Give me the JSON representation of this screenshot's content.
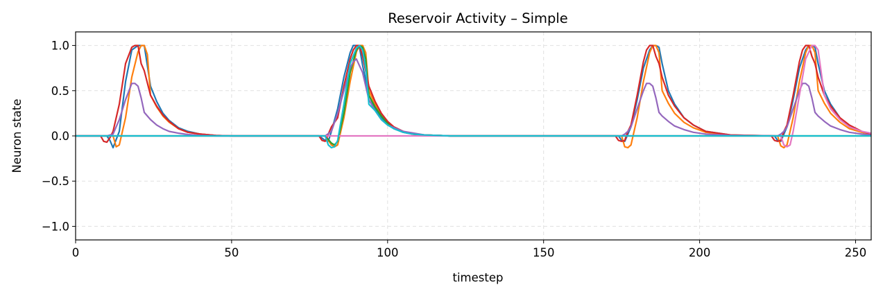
{
  "chart_data": {
    "type": "line",
    "title": "Reservoir Activity – Simple",
    "xlabel": "timestep",
    "ylabel": "Neuron state",
    "xlim": [
      0,
      255
    ],
    "ylim": [
      -1.15,
      1.15
    ],
    "xticks": [
      0,
      50,
      100,
      150,
      200,
      250
    ],
    "xtick_labels": [
      "0",
      "50",
      "100",
      "150",
      "200",
      "250"
    ],
    "yticks": [
      -1.0,
      -0.5,
      0.0,
      0.5,
      1.0
    ],
    "ytick_labels": [
      "−1.0",
      "−0.5",
      "0.0",
      "0.5",
      "1.0"
    ],
    "grid": true,
    "legend": "none",
    "series": [
      {
        "color": "#1f77b4",
        "x": [
          0,
          10,
          11,
          12,
          14,
          16,
          18,
          20,
          22,
          24,
          26,
          28,
          30,
          33,
          36,
          40,
          45,
          50,
          60,
          78,
          80,
          81,
          82,
          84,
          86,
          88,
          89,
          90,
          91,
          92,
          94,
          96,
          98,
          100,
          102,
          105,
          108,
          112,
          120,
          150,
          174,
          175,
          176,
          177,
          178,
          180,
          182,
          184,
          185,
          186,
          187,
          188,
          190,
          192,
          195,
          198,
          202,
          210,
          224,
          225,
          226,
          227,
          228,
          230,
          232,
          234,
          235,
          236,
          237,
          238,
          240,
          242,
          245,
          248,
          252,
          255
        ],
        "y": [
          0,
          0,
          -0.05,
          -0.13,
          0.05,
          0.6,
          0.95,
          1,
          1,
          0.55,
          0.38,
          0.25,
          0.17,
          0.09,
          0.05,
          0.02,
          0.005,
          0,
          0,
          0,
          -0.05,
          -0.06,
          0.05,
          0.3,
          0.65,
          0.92,
          1,
          1,
          0.98,
          0.78,
          0.45,
          0.3,
          0.2,
          0.13,
          0.08,
          0.04,
          0.02,
          0.01,
          0,
          0,
          0,
          -0.05,
          -0.06,
          0.02,
          0.1,
          0.4,
          0.75,
          0.95,
          1,
          1,
          0.98,
          0.8,
          0.5,
          0.35,
          0.2,
          0.12,
          0.05,
          0.01,
          0,
          -0.05,
          -0.06,
          0.02,
          0.1,
          0.4,
          0.75,
          0.95,
          1,
          1,
          0.98,
          0.8,
          0.5,
          0.35,
          0.2,
          0.1,
          0.04,
          0.02
        ]
      },
      {
        "color": "#ff7f0e",
        "x": [
          0,
          10,
          12,
          13,
          14,
          16,
          18,
          20,
          21,
          22,
          23,
          24,
          26,
          28,
          30,
          33,
          36,
          40,
          45,
          50,
          60,
          80,
          82,
          83,
          84,
          86,
          88,
          90,
          91,
          92,
          93,
          94,
          96,
          98,
          100,
          102,
          105,
          108,
          112,
          120,
          150,
          175,
          176,
          177,
          178,
          180,
          182,
          184,
          185,
          186,
          187,
          188,
          190,
          192,
          195,
          198,
          202,
          210,
          225,
          226,
          227,
          228,
          230,
          232,
          234,
          235,
          236,
          237,
          238,
          240,
          242,
          245,
          248,
          252,
          255
        ],
        "y": [
          0,
          0,
          0,
          -0.12,
          -0.1,
          0.2,
          0.65,
          0.93,
          1,
          1,
          0.9,
          0.45,
          0.32,
          0.22,
          0.15,
          0.08,
          0.04,
          0.02,
          0.005,
          0,
          0,
          0,
          -0.1,
          -0.12,
          -0.1,
          0.2,
          0.6,
          0.93,
          1,
          1,
          0.92,
          0.5,
          0.35,
          0.24,
          0.15,
          0.1,
          0.05,
          0.02,
          0.01,
          0,
          0,
          0,
          -0.12,
          -0.13,
          -0.1,
          0.2,
          0.6,
          0.92,
          1,
          1,
          0.92,
          0.5,
          0.36,
          0.25,
          0.15,
          0.09,
          0.04,
          0.01,
          0,
          -0.11,
          -0.13,
          -0.1,
          0.2,
          0.6,
          0.92,
          1,
          1,
          0.92,
          0.5,
          0.36,
          0.25,
          0.15,
          0.08,
          0.04,
          0.02
        ]
      },
      {
        "color": "#2ca02c",
        "x": [
          0,
          80,
          82,
          83,
          84,
          86,
          88,
          90,
          91,
          92,
          93,
          94,
          96,
          98,
          100,
          102,
          105,
          108,
          112,
          120,
          150,
          255
        ],
        "y": [
          0,
          0,
          -0.08,
          -0.1,
          -0.06,
          0.25,
          0.7,
          0.95,
          1,
          0.98,
          0.85,
          0.45,
          0.32,
          0.22,
          0.14,
          0.09,
          0.05,
          0.02,
          0.01,
          0,
          0,
          0
        ]
      },
      {
        "color": "#d62728",
        "x": [
          0,
          8,
          9,
          10,
          11,
          12,
          14,
          16,
          18,
          19,
          20,
          21,
          22,
          24,
          26,
          28,
          30,
          33,
          36,
          40,
          45,
          50,
          60,
          78,
          79,
          80,
          81,
          82,
          84,
          86,
          88,
          89,
          90,
          91,
          92,
          94,
          96,
          98,
          100,
          102,
          105,
          108,
          112,
          120,
          150,
          173,
          174,
          175,
          176,
          177,
          178,
          180,
          182,
          183,
          184,
          185,
          186,
          187,
          188,
          190,
          192,
          195,
          198,
          202,
          210,
          223,
          224,
          225,
          226,
          227,
          228,
          230,
          232,
          233,
          234,
          235,
          236,
          237,
          238,
          240,
          242,
          245,
          248,
          252,
          255
        ],
        "y": [
          0,
          0,
          -0.06,
          -0.07,
          -0.02,
          0.05,
          0.35,
          0.8,
          0.98,
          1,
          1,
          0.8,
          0.72,
          0.45,
          0.33,
          0.23,
          0.16,
          0.08,
          0.04,
          0.02,
          0.005,
          0,
          0,
          0,
          -0.05,
          -0.06,
          0.02,
          0.1,
          0.2,
          0.55,
          0.85,
          0.95,
          1,
          1,
          0.88,
          0.55,
          0.38,
          0.25,
          0.16,
          0.1,
          0.05,
          0.02,
          0.01,
          0,
          0,
          0,
          -0.05,
          -0.06,
          -0.05,
          0.05,
          0.12,
          0.45,
          0.82,
          0.95,
          1,
          1,
          0.88,
          0.8,
          0.65,
          0.45,
          0.33,
          0.2,
          0.12,
          0.05,
          0.01,
          0,
          -0.05,
          -0.06,
          -0.05,
          0.05,
          0.12,
          0.45,
          0.82,
          0.95,
          1,
          1,
          0.88,
          0.8,
          0.65,
          0.45,
          0.33,
          0.2,
          0.12,
          0.05,
          0.02
        ]
      },
      {
        "color": "#9467bd",
        "x": [
          0,
          10,
          12,
          14,
          16,
          18,
          19,
          20,
          21,
          22,
          24,
          26,
          28,
          30,
          33,
          36,
          40,
          45,
          50,
          60,
          80,
          82,
          84,
          86,
          88,
          89,
          90,
          92,
          94,
          96,
          98,
          100,
          105,
          112,
          120,
          150,
          175,
          176,
          177,
          178,
          180,
          182,
          183,
          184,
          185,
          186,
          187,
          188,
          190,
          192,
          195,
          198,
          202,
          210,
          225,
          226,
          227,
          228,
          230,
          232,
          233,
          234,
          235,
          236,
          237,
          238,
          240,
          242,
          245,
          248,
          252,
          255
        ],
        "y": [
          0,
          0,
          0.02,
          0.18,
          0.4,
          0.58,
          0.58,
          0.55,
          0.42,
          0.26,
          0.18,
          0.12,
          0.08,
          0.05,
          0.03,
          0.015,
          0.005,
          0,
          0,
          0,
          0,
          0.05,
          0.25,
          0.5,
          0.75,
          0.82,
          0.85,
          0.7,
          0.4,
          0.28,
          0.18,
          0.12,
          0.05,
          0.01,
          0,
          0,
          0,
          0.02,
          0.05,
          0.1,
          0.3,
          0.5,
          0.58,
          0.58,
          0.55,
          0.42,
          0.26,
          0.22,
          0.16,
          0.11,
          0.07,
          0.04,
          0.02,
          0.005,
          0,
          0.02,
          0.05,
          0.1,
          0.3,
          0.5,
          0.58,
          0.58,
          0.55,
          0.42,
          0.26,
          0.22,
          0.16,
          0.11,
          0.07,
          0.04,
          0.02,
          0.01
        ]
      },
      {
        "color": "#e377c2",
        "x": [
          0,
          226,
          227,
          228,
          229,
          230,
          232,
          234,
          236,
          237,
          238,
          239,
          240,
          242,
          245,
          248,
          252,
          255
        ],
        "y": [
          0,
          0,
          -0.1,
          -0.12,
          -0.1,
          0.05,
          0.45,
          0.85,
          1,
          1,
          0.95,
          0.7,
          0.45,
          0.3,
          0.18,
          0.1,
          0.05,
          0.03
        ]
      },
      {
        "color": "#17becf",
        "x": [
          0,
          80,
          81,
          82,
          83,
          84,
          86,
          88,
          90,
          91,
          92,
          93,
          94,
          96,
          98,
          100,
          102,
          105,
          108,
          112,
          120,
          150,
          255
        ],
        "y": [
          0,
          0,
          -0.1,
          -0.13,
          -0.12,
          -0.05,
          0.35,
          0.8,
          0.97,
          1,
          0.95,
          0.75,
          0.35,
          0.28,
          0.18,
          0.12,
          0.08,
          0.04,
          0.02,
          0.01,
          0,
          0,
          0
        ]
      }
    ]
  }
}
